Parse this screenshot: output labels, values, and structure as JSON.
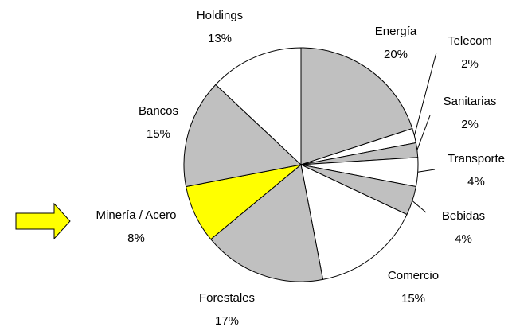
{
  "chart_data": {
    "type": "pie",
    "categories": [
      "Energía",
      "Telecom",
      "Sanitarias",
      "Transporte",
      "Bebidas",
      "Comercio",
      "Forestales",
      "Minería / Acero",
      "Bancos",
      "Holdings"
    ],
    "values": [
      20,
      2,
      2,
      4,
      4,
      15,
      17,
      8,
      15,
      13
    ],
    "value_labels": [
      "20%",
      "2%",
      "2%",
      "4%",
      "4%",
      "15%",
      "17%",
      "8%",
      "15%",
      "13%"
    ],
    "colors": [
      "#c0c0c0",
      "#ffffff",
      "#c0c0c0",
      "#ffffff",
      "#c0c0c0",
      "#ffffff",
      "#c0c0c0",
      "#ffff00",
      "#c0c0c0",
      "#ffffff"
    ]
  }
}
